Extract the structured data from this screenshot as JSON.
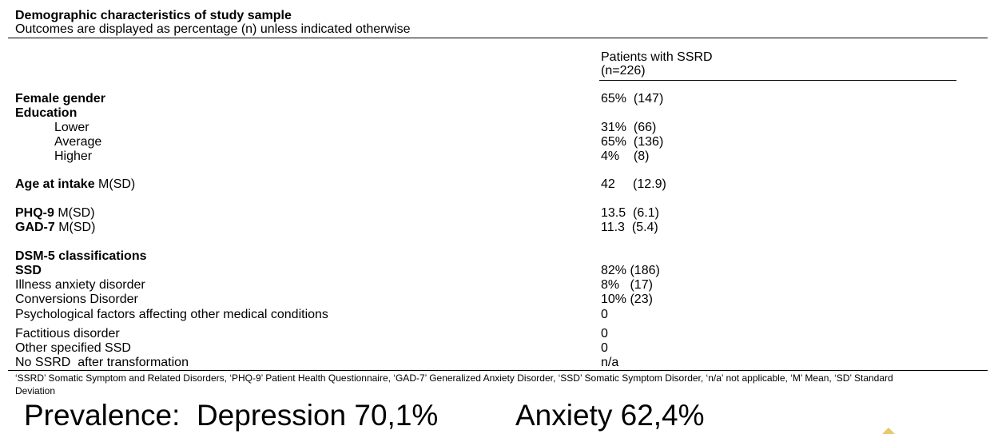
{
  "header": {
    "title": "Demographic characteristics of study sample",
    "subtitle": "Outcomes are displayed as percentage (n) unless indicated otherwise"
  },
  "column": {
    "label_line1": "Patients with SSRD",
    "label_line2": "(n=226)"
  },
  "rows": {
    "female_gender": {
      "label": "Female gender",
      "value": "65%  (147)"
    },
    "education": {
      "label": "Education"
    },
    "education_lower": {
      "label": "Lower",
      "value": "31%  (66)"
    },
    "education_average": {
      "label": "Average",
      "value": "65%  (136)"
    },
    "education_higher": {
      "label": "Higher",
      "value": "4%    (8)"
    },
    "age": {
      "label": "Age at intake",
      "suffix": " M(SD)",
      "value": "42     (12.9)"
    },
    "phq9": {
      "label": "PHQ-9",
      "suffix": " M(SD)",
      "value": "13.5  (6.1)"
    },
    "gad7": {
      "label": "GAD-7",
      "suffix": " M(SD)",
      "value": "11.3  (5.4)"
    },
    "dsm5": {
      "label": "DSM-5 classifications"
    },
    "ssd": {
      "label": "SSD",
      "value": "82% (186)"
    },
    "illness_anxiety": {
      "label": "Illness anxiety disorder",
      "value": "8%   (17)"
    },
    "conversion": {
      "label": "Conversions Disorder",
      "value": "10% (23)"
    },
    "psych_factors": {
      "label": "Psychological factors affecting other medical conditions",
      "value": "0"
    },
    "factitious": {
      "label": "Factitious disorder",
      "value": "0"
    },
    "other_ssd": {
      "label": "Other specified SSD",
      "value": "0"
    },
    "no_ssrd": {
      "label": "No SSRD  after transformation",
      "value": "n/a"
    }
  },
  "footnote": {
    "line1": "‘SSRD’ Somatic Symptom and Related Disorders, ‘PHQ-9’ Patient Health Questionnaire, ‘GAD-7’ Generalized Anxiety Disorder, ‘SSD’ Somatic Symptom Disorder, ‘n/a’ not applicable, ‘M’ Mean, ‘SD’ Standard",
    "line2": "Deviation"
  },
  "prevalence": {
    "depression": "Prevalence:  Depression 70,1%",
    "anxiety": "Anxiety 62,4%"
  }
}
